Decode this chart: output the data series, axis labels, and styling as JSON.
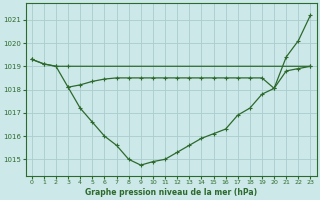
{
  "title": "Graphe pression niveau de la mer (hPa)",
  "bg_color": "#cce8e8",
  "grid_color": "#aacccc",
  "line_color": "#2d6a2d",
  "xlim": [
    -0.5,
    23.5
  ],
  "ylim": [
    1014.3,
    1021.7
  ],
  "yticks": [
    1015,
    1016,
    1017,
    1018,
    1019,
    1020,
    1021
  ],
  "xticks": [
    0,
    1,
    2,
    3,
    4,
    5,
    6,
    7,
    8,
    9,
    10,
    11,
    12,
    13,
    14,
    15,
    16,
    17,
    18,
    19,
    20,
    21,
    22,
    23
  ],
  "line1_x": [
    0,
    1,
    2,
    3,
    23
  ],
  "line1_y": [
    1019.3,
    1019.1,
    1019.0,
    1019.0,
    1019.0
  ],
  "line2_x": [
    0,
    1,
    2,
    3,
    4,
    5,
    6,
    7,
    8,
    9,
    10,
    11,
    12,
    13,
    14,
    15,
    16,
    17,
    18,
    19,
    20,
    21,
    22,
    23
  ],
  "line2_y": [
    1019.3,
    1019.1,
    1019.0,
    1018.1,
    1017.2,
    1016.6,
    1016.0,
    1015.6,
    1015.0,
    1014.75,
    1014.9,
    1015.0,
    1015.3,
    1015.6,
    1015.9,
    1016.1,
    1016.3,
    1016.9,
    1017.2,
    1017.8,
    1018.05,
    1019.4,
    1020.1,
    1021.2
  ],
  "line3_x": [
    3,
    4,
    5,
    6,
    7,
    8,
    9,
    10,
    11,
    12,
    13,
    14,
    15,
    16,
    17,
    18,
    19,
    20,
    21,
    22,
    23
  ],
  "line3_y": [
    1018.1,
    1018.2,
    1018.35,
    1018.45,
    1018.5,
    1018.5,
    1018.5,
    1018.5,
    1018.5,
    1018.5,
    1018.5,
    1018.5,
    1018.5,
    1018.5,
    1018.5,
    1018.5,
    1018.5,
    1018.05,
    1018.8,
    1018.9,
    1019.0
  ]
}
